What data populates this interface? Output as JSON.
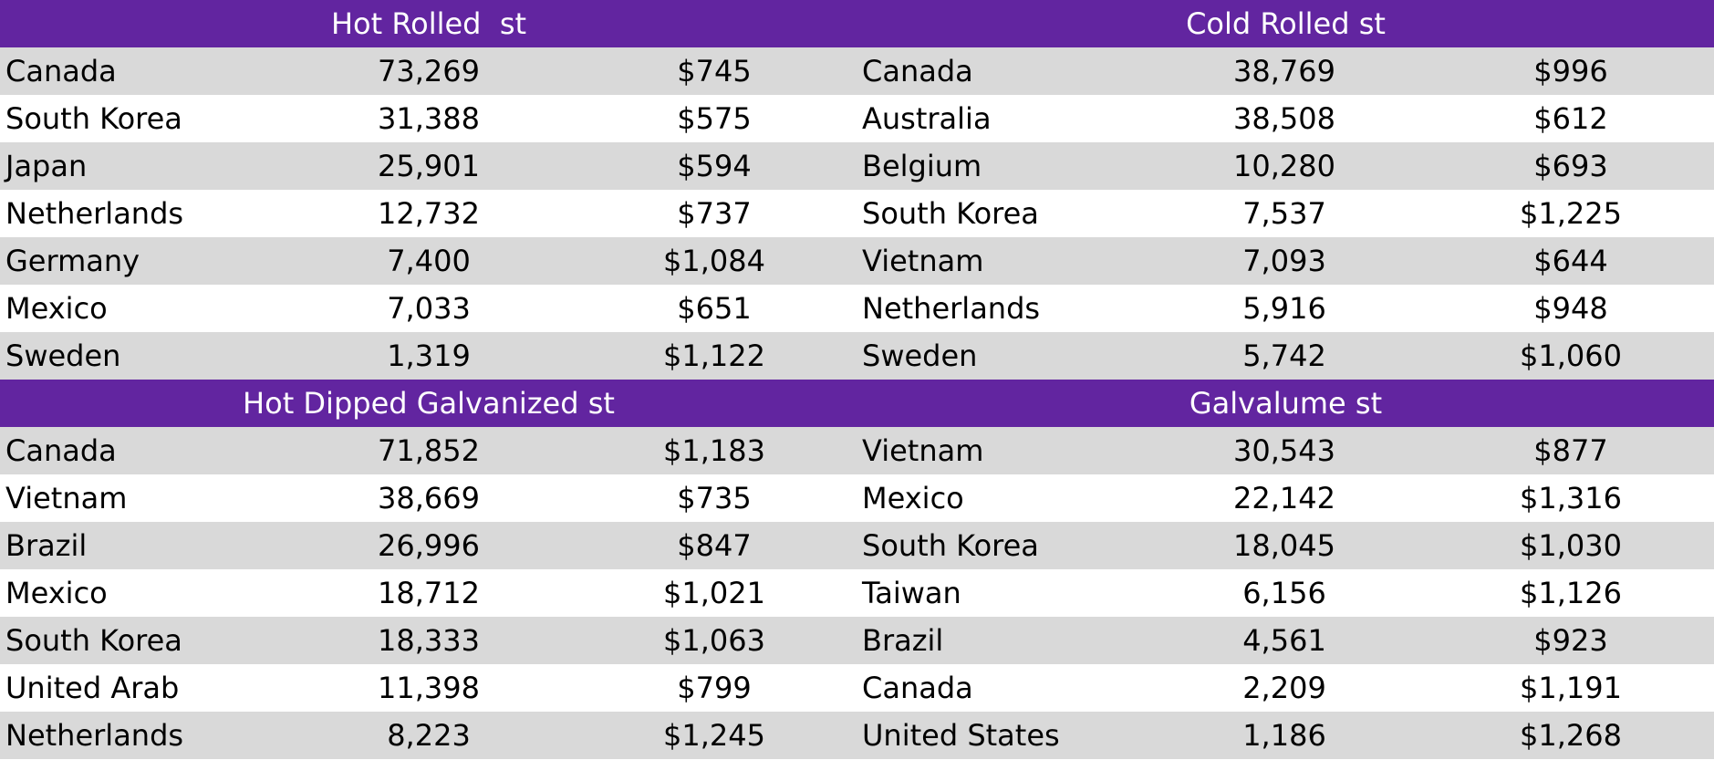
{
  "top": {
    "left_title": "Hot Rolled  st",
    "right_title": "Cold Rolled st",
    "rows": [
      {
        "l_country": "Canada",
        "l_qty": "73,269",
        "l_price": "$745",
        "r_country": "Canada",
        "r_qty": "38,769",
        "r_price": "$996"
      },
      {
        "l_country": "South Korea",
        "l_qty": "31,388",
        "l_price": "$575",
        "r_country": "Australia",
        "r_qty": "38,508",
        "r_price": "$612"
      },
      {
        "l_country": "Japan",
        "l_qty": "25,901",
        "l_price": "$594",
        "r_country": "Belgium",
        "r_qty": "10,280",
        "r_price": "$693"
      },
      {
        "l_country": "Netherlands",
        "l_qty": "12,732",
        "l_price": "$737",
        "r_country": "South Korea",
        "r_qty": "7,537",
        "r_price": "$1,225"
      },
      {
        "l_country": "Germany",
        "l_qty": "7,400",
        "l_price": "$1,084",
        "r_country": "Vietnam",
        "r_qty": "7,093",
        "r_price": "$644"
      },
      {
        "l_country": "Mexico",
        "l_qty": "7,033",
        "l_price": "$651",
        "r_country": "Netherlands",
        "r_qty": "5,916",
        "r_price": "$948"
      },
      {
        "l_country": "Sweden",
        "l_qty": "1,319",
        "l_price": "$1,122",
        "r_country": "Sweden",
        "r_qty": "5,742",
        "r_price": "$1,060"
      }
    ]
  },
  "bottom": {
    "left_title": "Hot Dipped Galvanized st",
    "right_title": "Galvalume st",
    "rows": [
      {
        "l_country": "Canada",
        "l_qty": "71,852",
        "l_price": "$1,183",
        "r_country": "Vietnam",
        "r_qty": "30,543",
        "r_price": "$877"
      },
      {
        "l_country": "Vietnam",
        "l_qty": "38,669",
        "l_price": "$735",
        "r_country": "Mexico",
        "r_qty": "22,142",
        "r_price": "$1,316"
      },
      {
        "l_country": "Brazil",
        "l_qty": "26,996",
        "l_price": "$847",
        "r_country": "South Korea",
        "r_qty": "18,045",
        "r_price": "$1,030"
      },
      {
        "l_country": "Mexico",
        "l_qty": "18,712",
        "l_price": "$1,021",
        "r_country": "Taiwan",
        "r_qty": "6,156",
        "r_price": "$1,126"
      },
      {
        "l_country": "South Korea",
        "l_qty": "18,333",
        "l_price": "$1,063",
        "r_country": "Brazil",
        "r_qty": "4,561",
        "r_price": "$923"
      },
      {
        "l_country": "United Arab",
        "l_qty": "11,398",
        "l_price": "$799",
        "r_country": "Canada",
        "r_qty": "2,209",
        "r_price": "$1,191"
      },
      {
        "l_country": "Netherlands",
        "l_qty": "8,223",
        "l_price": "$1,245",
        "r_country": "United States",
        "r_qty": "1,186",
        "r_price": "$1,268"
      }
    ]
  },
  "colors": {
    "header_bg": "#6225a0",
    "header_text": "#ffffff",
    "row_shade": "#d9d9d9",
    "row_plain": "#ffffff"
  }
}
